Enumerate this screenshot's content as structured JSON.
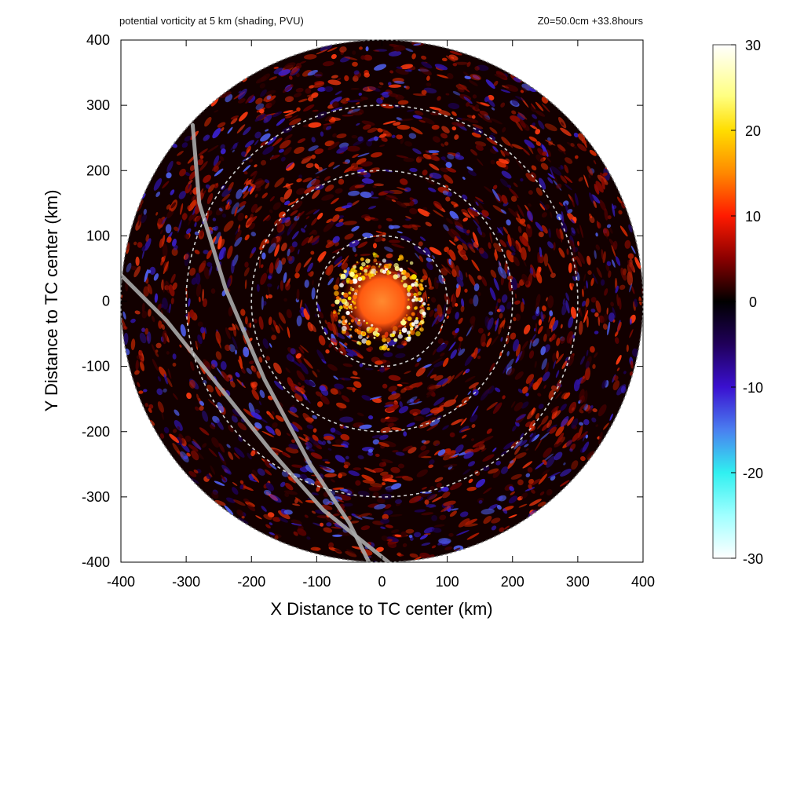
{
  "header": {
    "left": "potential vorticity at 5 km (shading, PVU)",
    "right": "Z0=50.0cm  +33.8hours"
  },
  "chart_data": {
    "type": "heatmap",
    "field": "potential vorticity",
    "units": "PVU",
    "xlabel": "X Distance to TC center (km)",
    "ylabel": "Y Distance to TC center (km)",
    "xlim": [
      -400,
      400
    ],
    "ylim": [
      -400,
      400
    ],
    "xticks": [
      "-400",
      "-300",
      "-200",
      "-100",
      "0",
      "100",
      "200",
      "300",
      "400"
    ],
    "yticks": [
      "-400",
      "-300",
      "-200",
      "-100",
      "0",
      "100",
      "200",
      "300",
      "400"
    ],
    "domain_radius_km": 400,
    "range_rings_km": [
      100,
      200,
      300
    ],
    "colorbar": {
      "min": -30,
      "max": 30,
      "ticks": [
        "30",
        "20",
        "10",
        "0",
        "-10",
        "-20",
        "-30"
      ],
      "stops": [
        {
          "value": 30,
          "color": "#ffffff"
        },
        {
          "value": 24,
          "color": "#ffff80"
        },
        {
          "value": 20,
          "color": "#ffdd00"
        },
        {
          "value": 15,
          "color": "#ff8800"
        },
        {
          "value": 10,
          "color": "#ff1a00"
        },
        {
          "value": 5,
          "color": "#8a0000"
        },
        {
          "value": 0,
          "color": "#000000"
        },
        {
          "value": -5,
          "color": "#20005a"
        },
        {
          "value": -10,
          "color": "#3a10d0"
        },
        {
          "value": -15,
          "color": "#4a7ff0"
        },
        {
          "value": -20,
          "color": "#30f0f0"
        },
        {
          "value": -25,
          "color": "#a0ffff"
        },
        {
          "value": -30,
          "color": "#ffffff"
        }
      ]
    },
    "features": {
      "core": {
        "center_km": [
          0,
          0
        ],
        "peak_pvu": 28
      },
      "eyewall_ring_km": [
        40,
        75
      ],
      "track_lines": [
        {
          "points_km": [
            [
              -290,
              270
            ],
            [
              -280,
              150
            ],
            [
              -240,
              20
            ],
            [
              -180,
              -120
            ],
            [
              -110,
              -250
            ],
            [
              -50,
              -340
            ],
            [
              -20,
              -400
            ]
          ]
        },
        {
          "points_km": [
            [
              -400,
              40
            ],
            [
              -330,
              -30
            ],
            [
              -250,
              -130
            ],
            [
              -170,
              -230
            ],
            [
              -90,
              -320
            ],
            [
              10,
              -400
            ]
          ]
        }
      ]
    }
  }
}
